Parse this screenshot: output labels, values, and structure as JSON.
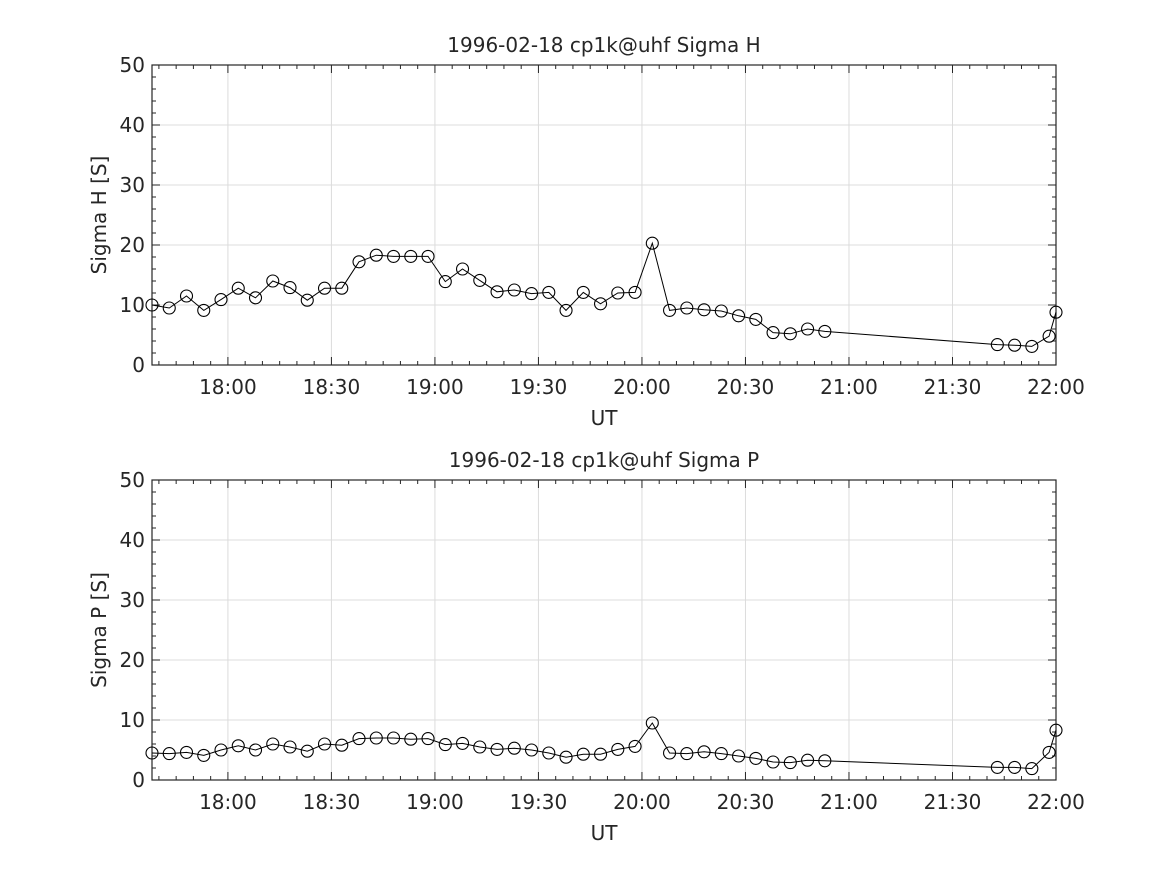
{
  "chart_data": [
    {
      "type": "line",
      "title": "1996-02-18  cp1k@uhf Sigma H",
      "xlabel": "UT",
      "ylabel": "Sigma H [S]",
      "ylim": [
        0,
        50
      ],
      "yticks": [
        "0",
        "10",
        "20",
        "30",
        "40",
        "50"
      ],
      "xlim": [
        "17:38",
        "22:00"
      ],
      "xticks": [
        "18:00",
        "18:30",
        "19:00",
        "19:30",
        "20:00",
        "20:30",
        "21:00",
        "21:30",
        "22:00"
      ],
      "grid": true,
      "marker": "open-circle",
      "x": [
        "17:38",
        "17:43",
        "17:48",
        "17:53",
        "17:58",
        "18:03",
        "18:08",
        "18:13",
        "18:18",
        "18:23",
        "18:28",
        "18:33",
        "18:38",
        "18:43",
        "18:48",
        "18:53",
        "18:58",
        "19:03",
        "19:08",
        "19:13",
        "19:18",
        "19:23",
        "19:28",
        "19:33",
        "19:38",
        "19:43",
        "19:48",
        "19:53",
        "19:58",
        "20:03",
        "20:08",
        "20:13",
        "20:18",
        "20:23",
        "20:28",
        "20:33",
        "20:38",
        "20:43",
        "20:48",
        "20:53",
        "21:43",
        "21:48",
        "21:53",
        "21:58",
        "22:00"
      ],
      "series": [
        {
          "values": [
            10.0,
            9.5,
            11.5,
            9.1,
            10.9,
            12.8,
            11.2,
            14.0,
            12.9,
            10.8,
            12.8,
            12.8,
            17.2,
            18.3,
            18.1,
            18.1,
            18.1,
            13.9,
            16.0,
            14.1,
            12.2,
            12.5,
            11.9,
            12.1,
            9.1,
            12.1,
            10.2,
            12.0,
            12.1,
            20.3,
            9.1,
            9.5,
            9.2,
            9.0,
            8.2,
            7.6,
            5.4,
            5.2,
            6.0,
            5.6,
            3.4,
            3.3,
            3.1,
            4.8,
            8.8
          ]
        }
      ]
    },
    {
      "type": "line",
      "title": "1996-02-18  cp1k@uhf Sigma P",
      "xlabel": "UT",
      "ylabel": "Sigma P [S]",
      "ylim": [
        0,
        50
      ],
      "yticks": [
        "0",
        "10",
        "20",
        "30",
        "40",
        "50"
      ],
      "xlim": [
        "17:38",
        "22:00"
      ],
      "xticks": [
        "18:00",
        "18:30",
        "19:00",
        "19:30",
        "20:00",
        "20:30",
        "21:00",
        "21:30",
        "22:00"
      ],
      "grid": true,
      "marker": "open-circle",
      "x": [
        "17:38",
        "17:43",
        "17:48",
        "17:53",
        "17:58",
        "18:03",
        "18:08",
        "18:13",
        "18:18",
        "18:23",
        "18:28",
        "18:33",
        "18:38",
        "18:43",
        "18:48",
        "18:53",
        "18:58",
        "19:03",
        "19:08",
        "19:13",
        "19:18",
        "19:23",
        "19:28",
        "19:33",
        "19:38",
        "19:43",
        "19:48",
        "19:53",
        "19:58",
        "20:03",
        "20:08",
        "20:13",
        "20:18",
        "20:23",
        "20:28",
        "20:33",
        "20:38",
        "20:43",
        "20:48",
        "20:53",
        "21:43",
        "21:48",
        "21:53",
        "21:58",
        "22:00"
      ],
      "series": [
        {
          "values": [
            4.5,
            4.4,
            4.6,
            4.1,
            5.0,
            5.7,
            5.0,
            6.0,
            5.5,
            4.8,
            6.0,
            5.8,
            6.9,
            7.0,
            7.0,
            6.8,
            6.9,
            5.9,
            6.1,
            5.5,
            5.1,
            5.3,
            5.0,
            4.5,
            3.8,
            4.3,
            4.3,
            5.1,
            5.6,
            9.5,
            4.5,
            4.4,
            4.7,
            4.4,
            4.0,
            3.6,
            3.0,
            2.9,
            3.3,
            3.2,
            2.1,
            2.1,
            1.9,
            4.6,
            8.3
          ]
        }
      ]
    }
  ]
}
